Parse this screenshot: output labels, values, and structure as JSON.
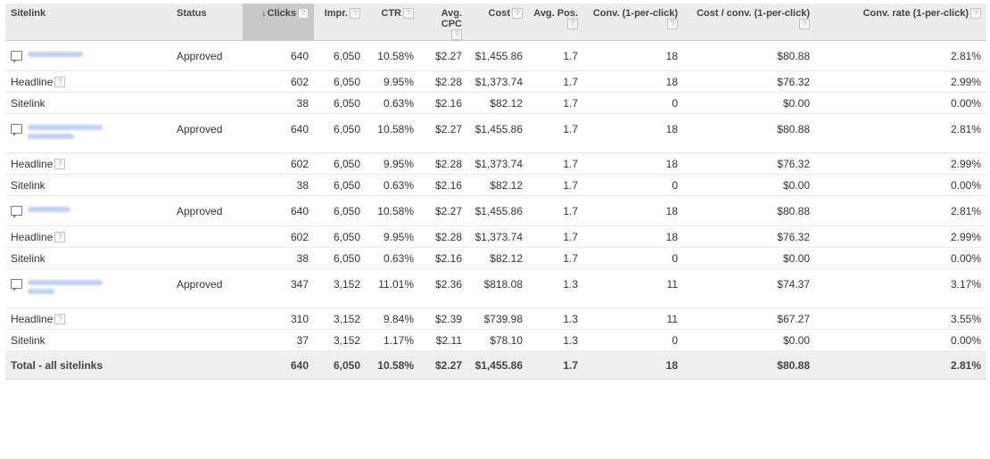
{
  "columns": {
    "sitelink": "Sitelink",
    "status": "Status",
    "clicks": "Clicks",
    "impr": "Impr.",
    "ctr": "CTR",
    "avg_cpc": "Avg. CPC",
    "cost": "Cost",
    "avg_pos": "Avg. Pos.",
    "conv": "Conv. (1-per-click)",
    "cost_conv": "Cost / conv. (1-per-click)",
    "conv_rate": "Conv. rate (1-per-click)"
  },
  "sort": {
    "column": "clicks",
    "direction": "descending",
    "arrow_glyph": "↓"
  },
  "help_glyph": "?",
  "rows": [
    {
      "sitelink": "",
      "type": "sitelink-text",
      "status": "Approved",
      "clicks": "640",
      "impr": "6,050",
      "ctr": "10.58%",
      "avg_cpc": "$2.27",
      "cost": "$1,455.86",
      "avg_pos": "1.7",
      "conv": "18",
      "cost_conv": "$80.88",
      "conv_rate": "2.81%"
    },
    {
      "sitelink": "Headline",
      "type": "headline",
      "status": "",
      "clicks": "602",
      "impr": "6,050",
      "ctr": "9.95%",
      "avg_cpc": "$2.28",
      "cost": "$1,373.74",
      "avg_pos": "1.7",
      "conv": "18",
      "cost_conv": "$76.32",
      "conv_rate": "2.99%"
    },
    {
      "sitelink": "Sitelink",
      "type": "sitelink",
      "status": "",
      "clicks": "38",
      "impr": "6,050",
      "ctr": "0.63%",
      "avg_cpc": "$2.16",
      "cost": "$82.12",
      "avg_pos": "1.7",
      "conv": "0",
      "cost_conv": "$0.00",
      "conv_rate": "0.00%"
    },
    {
      "sitelink": "",
      "type": "sitelink-text",
      "status": "Approved",
      "clicks": "640",
      "impr": "6,050",
      "ctr": "10.58%",
      "avg_cpc": "$2.27",
      "cost": "$1,455.86",
      "avg_pos": "1.7",
      "conv": "18",
      "cost_conv": "$80.88",
      "conv_rate": "2.81%"
    },
    {
      "sitelink": "Headline",
      "type": "headline",
      "status": "",
      "clicks": "602",
      "impr": "6,050",
      "ctr": "9.95%",
      "avg_cpc": "$2.28",
      "cost": "$1,373.74",
      "avg_pos": "1.7",
      "conv": "18",
      "cost_conv": "$76.32",
      "conv_rate": "2.99%"
    },
    {
      "sitelink": "Sitelink",
      "type": "sitelink",
      "status": "",
      "clicks": "38",
      "impr": "6,050",
      "ctr": "0.63%",
      "avg_cpc": "$2.16",
      "cost": "$82.12",
      "avg_pos": "1.7",
      "conv": "0",
      "cost_conv": "$0.00",
      "conv_rate": "0.00%"
    },
    {
      "sitelink": "",
      "type": "sitelink-text",
      "status": "Approved",
      "clicks": "640",
      "impr": "6,050",
      "ctr": "10.58%",
      "avg_cpc": "$2.27",
      "cost": "$1,455.86",
      "avg_pos": "1.7",
      "conv": "18",
      "cost_conv": "$80.88",
      "conv_rate": "2.81%"
    },
    {
      "sitelink": "Headline",
      "type": "headline",
      "status": "",
      "clicks": "602",
      "impr": "6,050",
      "ctr": "9.95%",
      "avg_cpc": "$2.28",
      "cost": "$1,373.74",
      "avg_pos": "1.7",
      "conv": "18",
      "cost_conv": "$76.32",
      "conv_rate": "2.99%"
    },
    {
      "sitelink": "Sitelink",
      "type": "sitelink",
      "status": "",
      "clicks": "38",
      "impr": "6,050",
      "ctr": "0.63%",
      "avg_cpc": "$2.16",
      "cost": "$82.12",
      "avg_pos": "1.7",
      "conv": "0",
      "cost_conv": "$0.00",
      "conv_rate": "0.00%"
    },
    {
      "sitelink": "",
      "type": "sitelink-text",
      "status": "Approved",
      "clicks": "347",
      "impr": "3,152",
      "ctr": "11.01%",
      "avg_cpc": "$2.36",
      "cost": "$818.08",
      "avg_pos": "1.3",
      "conv": "11",
      "cost_conv": "$74.37",
      "conv_rate": "3.17%"
    },
    {
      "sitelink": "Headline",
      "type": "headline",
      "status": "",
      "clicks": "310",
      "impr": "3,152",
      "ctr": "9.84%",
      "avg_cpc": "$2.39",
      "cost": "$739.98",
      "avg_pos": "1.3",
      "conv": "11",
      "cost_conv": "$67.27",
      "conv_rate": "3.55%"
    },
    {
      "sitelink": "Sitelink",
      "type": "sitelink",
      "status": "",
      "clicks": "37",
      "impr": "3,152",
      "ctr": "1.17%",
      "avg_cpc": "$2.11",
      "cost": "$78.10",
      "avg_pos": "1.3",
      "conv": "0",
      "cost_conv": "$0.00",
      "conv_rate": "0.00%"
    }
  ],
  "total": {
    "label": "Total - all sitelinks",
    "clicks": "640",
    "impr": "6,050",
    "ctr": "10.58%",
    "avg_cpc": "$2.27",
    "cost": "$1,455.86",
    "avg_pos": "1.7",
    "conv": "18",
    "cost_conv": "$80.88",
    "conv_rate": "2.81%"
  },
  "colors": {
    "header_bg": "#ececec",
    "sorted_header_bg": "#c8c8c8",
    "total_bg": "#eeeeee",
    "blurred_link": "#b6c9ec"
  },
  "icons": {
    "sitelink_row": "speech-bubble-icon",
    "help": "help-icon",
    "sort": "sort-desc-icon"
  }
}
